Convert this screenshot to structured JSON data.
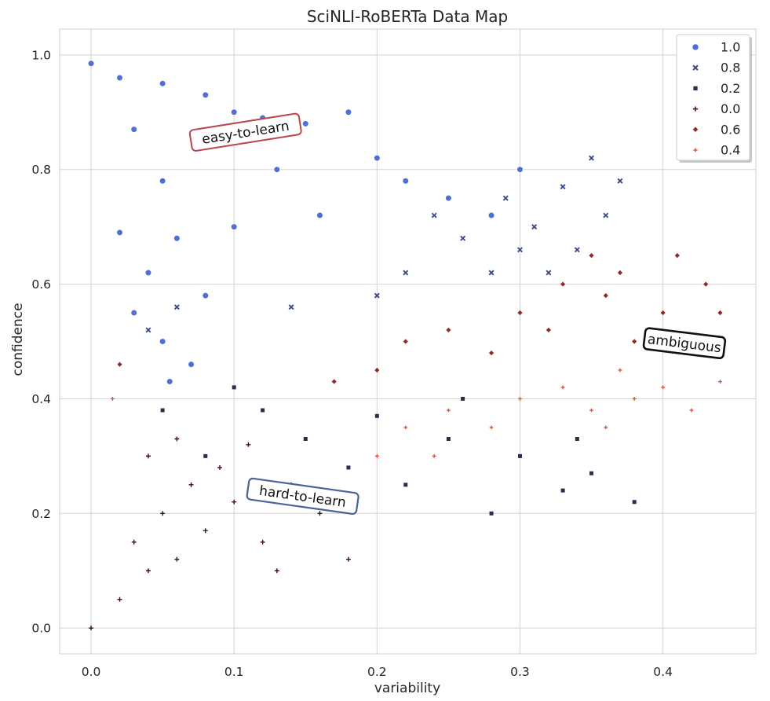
{
  "chart_data": {
    "type": "scatter",
    "title": "SciNLI-RoBERTa Data Map",
    "xlabel": "variability",
    "ylabel": "confidence",
    "xlim": [
      -0.022,
      0.465
    ],
    "ylim": [
      -0.045,
      1.045
    ],
    "x_ticks": [
      0.0,
      0.1,
      0.2,
      0.3,
      0.4
    ],
    "x_tick_labels": [
      "0.0",
      "0.1",
      "0.2",
      "0.3",
      "0.4"
    ],
    "y_ticks": [
      0.0,
      0.2,
      0.4,
      0.6,
      0.8,
      1.0
    ],
    "y_tick_labels": [
      "0.0",
      "0.2",
      "0.4",
      "0.6",
      "0.8",
      "1.0"
    ],
    "grid": true,
    "legend_position": "top-right",
    "legend_title": "",
    "series": [
      {
        "name": "1.0",
        "marker": "circle",
        "color": "#4f6fd6",
        "points": [
          [
            0.0,
            0.985
          ],
          [
            0.02,
            0.96
          ],
          [
            0.05,
            0.95
          ],
          [
            0.08,
            0.93
          ],
          [
            0.1,
            0.9
          ],
          [
            0.12,
            0.89
          ],
          [
            0.15,
            0.88
          ],
          [
            0.2,
            0.82
          ],
          [
            0.25,
            0.75
          ],
          [
            0.03,
            0.87
          ],
          [
            0.05,
            0.78
          ],
          [
            0.06,
            0.68
          ],
          [
            0.08,
            0.58
          ],
          [
            0.1,
            0.7
          ],
          [
            0.13,
            0.8
          ],
          [
            0.16,
            0.72
          ],
          [
            0.02,
            0.69
          ],
          [
            0.04,
            0.62
          ],
          [
            0.03,
            0.55
          ],
          [
            0.05,
            0.5
          ],
          [
            0.055,
            0.43
          ],
          [
            0.07,
            0.46
          ],
          [
            0.18,
            0.9
          ],
          [
            0.22,
            0.78
          ],
          [
            0.28,
            0.72
          ],
          [
            0.3,
            0.8
          ]
        ]
      },
      {
        "name": "0.8",
        "marker": "x",
        "color": "#3c4a8a",
        "points": [
          [
            0.37,
            0.78
          ],
          [
            0.35,
            0.82
          ],
          [
            0.33,
            0.77
          ],
          [
            0.31,
            0.7
          ],
          [
            0.36,
            0.72
          ],
          [
            0.3,
            0.66
          ],
          [
            0.28,
            0.62
          ],
          [
            0.26,
            0.68
          ],
          [
            0.22,
            0.62
          ],
          [
            0.2,
            0.58
          ],
          [
            0.34,
            0.66
          ],
          [
            0.29,
            0.75
          ],
          [
            0.24,
            0.72
          ],
          [
            0.32,
            0.62
          ],
          [
            0.06,
            0.56
          ],
          [
            0.04,
            0.52
          ],
          [
            0.14,
            0.56
          ]
        ]
      },
      {
        "name": "0.2",
        "marker": "square",
        "color": "#2b2d4a",
        "points": [
          [
            0.38,
            0.22
          ],
          [
            0.33,
            0.24
          ],
          [
            0.3,
            0.3
          ],
          [
            0.25,
            0.33
          ],
          [
            0.35,
            0.27
          ],
          [
            0.28,
            0.2
          ],
          [
            0.22,
            0.25
          ],
          [
            0.2,
            0.37
          ],
          [
            0.15,
            0.33
          ],
          [
            0.18,
            0.28
          ],
          [
            0.26,
            0.4
          ],
          [
            0.34,
            0.33
          ],
          [
            0.12,
            0.38
          ],
          [
            0.1,
            0.42
          ],
          [
            0.05,
            0.38
          ],
          [
            0.08,
            0.3
          ]
        ]
      },
      {
        "name": "0.0",
        "marker": "plus",
        "color": "#3d0f17",
        "points": [
          [
            0.0,
            0.0
          ],
          [
            0.02,
            0.05
          ],
          [
            0.04,
            0.1
          ],
          [
            0.05,
            0.2
          ],
          [
            0.06,
            0.12
          ],
          [
            0.08,
            0.17
          ],
          [
            0.1,
            0.22
          ],
          [
            0.12,
            0.15
          ],
          [
            0.14,
            0.25
          ],
          [
            0.03,
            0.15
          ],
          [
            0.07,
            0.25
          ],
          [
            0.09,
            0.28
          ],
          [
            0.11,
            0.32
          ],
          [
            0.16,
            0.2
          ],
          [
            0.18,
            0.12
          ],
          [
            0.13,
            0.1
          ],
          [
            0.04,
            0.3
          ],
          [
            0.06,
            0.33
          ]
        ]
      },
      {
        "name": "0.6",
        "marker": "diamond",
        "color": "#8e2a28",
        "points": [
          [
            0.41,
            0.65
          ],
          [
            0.43,
            0.6
          ],
          [
            0.4,
            0.55
          ],
          [
            0.38,
            0.5
          ],
          [
            0.36,
            0.58
          ],
          [
            0.33,
            0.6
          ],
          [
            0.3,
            0.55
          ],
          [
            0.28,
            0.48
          ],
          [
            0.25,
            0.52
          ],
          [
            0.22,
            0.5
          ],
          [
            0.2,
            0.45
          ],
          [
            0.17,
            0.43
          ],
          [
            0.35,
            0.65
          ],
          [
            0.37,
            0.62
          ],
          [
            0.32,
            0.52
          ],
          [
            0.02,
            0.46
          ],
          [
            0.44,
            0.55
          ]
        ]
      },
      {
        "name": "0.4",
        "marker": "plus-small",
        "color": "#e0533f",
        "points": [
          [
            0.44,
            0.43
          ],
          [
            0.42,
            0.38
          ],
          [
            0.4,
            0.42
          ],
          [
            0.38,
            0.4
          ],
          [
            0.37,
            0.45
          ],
          [
            0.35,
            0.38
          ],
          [
            0.33,
            0.42
          ],
          [
            0.3,
            0.4
          ],
          [
            0.28,
            0.35
          ],
          [
            0.25,
            0.38
          ],
          [
            0.22,
            0.35
          ],
          [
            0.2,
            0.3
          ],
          [
            0.24,
            0.3
          ],
          [
            0.36,
            0.35
          ],
          [
            0.015,
            0.4
          ],
          [
            0.43,
            0.48
          ]
        ]
      }
    ],
    "annotations": [
      {
        "text": "easy-to-learn",
        "x": 0.108,
        "y": 0.865,
        "rotation": -9,
        "border_color": "#b9464c",
        "border_width": 2
      },
      {
        "text": "ambiguous",
        "x": 0.415,
        "y": 0.497,
        "rotation": 7,
        "border_color": "#111111",
        "border_width": 2.6
      },
      {
        "text": "hard-to-learn",
        "x": 0.148,
        "y": 0.23,
        "rotation": 8,
        "border_color": "#4a6398",
        "border_width": 2.2
      }
    ]
  }
}
